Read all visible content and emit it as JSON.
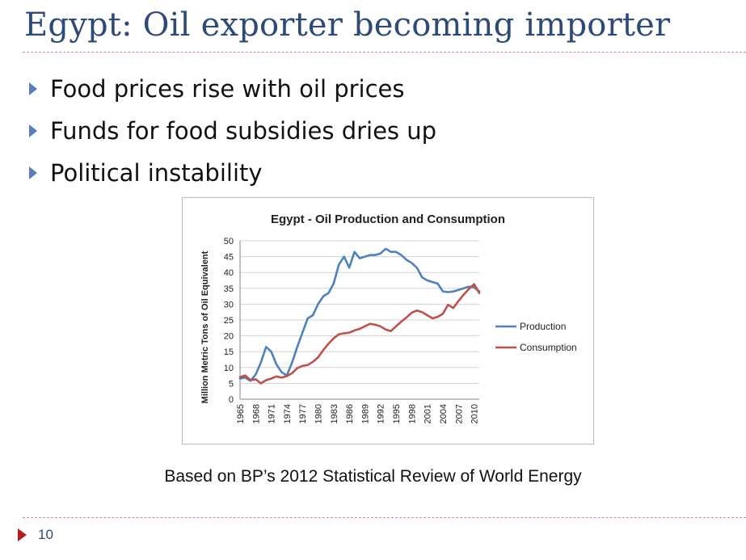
{
  "slide": {
    "title": "Egypt: Oil exporter becoming importer",
    "bullets": [
      "Food prices rise with oil prices",
      "Funds for food subsidies dries up",
      "Political instability"
    ],
    "caption": "Based on BP’s 2012 Statistical Review of World Energy",
    "page_number": "10"
  },
  "chart_data": {
    "type": "line",
    "title": "Egypt - Oil Production and Consumption",
    "ylabel": "Million Metric Tons of Oil Equivalent",
    "xlabel": "",
    "ylim": [
      0,
      50
    ],
    "y_ticks": [
      "0",
      "5",
      "10",
      "15",
      "20",
      "25",
      "30",
      "35",
      "40",
      "45",
      "50"
    ],
    "x_tick_labels": [
      "1965",
      "1968",
      "1971",
      "1974",
      "1977",
      "1980",
      "1983",
      "1986",
      "1989",
      "1992",
      "1995",
      "1998",
      "2001",
      "2004",
      "2007",
      "2010"
    ],
    "grid": "horizontal",
    "legend": "right",
    "x": [
      1965,
      1966,
      1967,
      1968,
      1969,
      1970,
      1971,
      1972,
      1973,
      1974,
      1975,
      1976,
      1977,
      1978,
      1979,
      1980,
      1981,
      1982,
      1983,
      1984,
      1985,
      1986,
      1987,
      1988,
      1989,
      1990,
      1991,
      1992,
      1993,
      1994,
      1995,
      1996,
      1997,
      1998,
      1999,
      2000,
      2001,
      2002,
      2003,
      2004,
      2005,
      2006,
      2007,
      2008,
      2009,
      2010,
      2011
    ],
    "series": [
      {
        "name": "Production",
        "color": "#4f81bd",
        "values": [
          6.5,
          6.8,
          5.8,
          7.8,
          11.5,
          16.5,
          15.0,
          11.0,
          8.5,
          7.5,
          11.5,
          16.5,
          21.0,
          25.5,
          26.5,
          30.0,
          32.5,
          33.5,
          36.5,
          42.5,
          45.0,
          41.5,
          46.5,
          44.5,
          45.0,
          45.5,
          45.5,
          46.0,
          47.5,
          46.5,
          46.5,
          45.5,
          44.0,
          43.0,
          41.5,
          38.5,
          37.5,
          37.0,
          36.5,
          34.0,
          33.8,
          34.0,
          34.5,
          35.0,
          35.5,
          35.3,
          34.0
        ]
      },
      {
        "name": "Consumption",
        "color": "#c0504d",
        "values": [
          7.0,
          7.5,
          6.0,
          6.3,
          5.0,
          6.0,
          6.5,
          7.2,
          6.8,
          7.3,
          8.2,
          9.8,
          10.5,
          10.8,
          11.8,
          13.2,
          15.5,
          17.5,
          19.2,
          20.5,
          20.8,
          21.0,
          21.7,
          22.2,
          23.0,
          23.8,
          23.5,
          23.0,
          22.0,
          21.5,
          23.0,
          24.5,
          25.8,
          27.3,
          28.0,
          27.5,
          26.5,
          25.5,
          26.0,
          27.0,
          29.8,
          28.8,
          31.0,
          33.0,
          34.8,
          36.3,
          33.5
        ]
      }
    ]
  }
}
